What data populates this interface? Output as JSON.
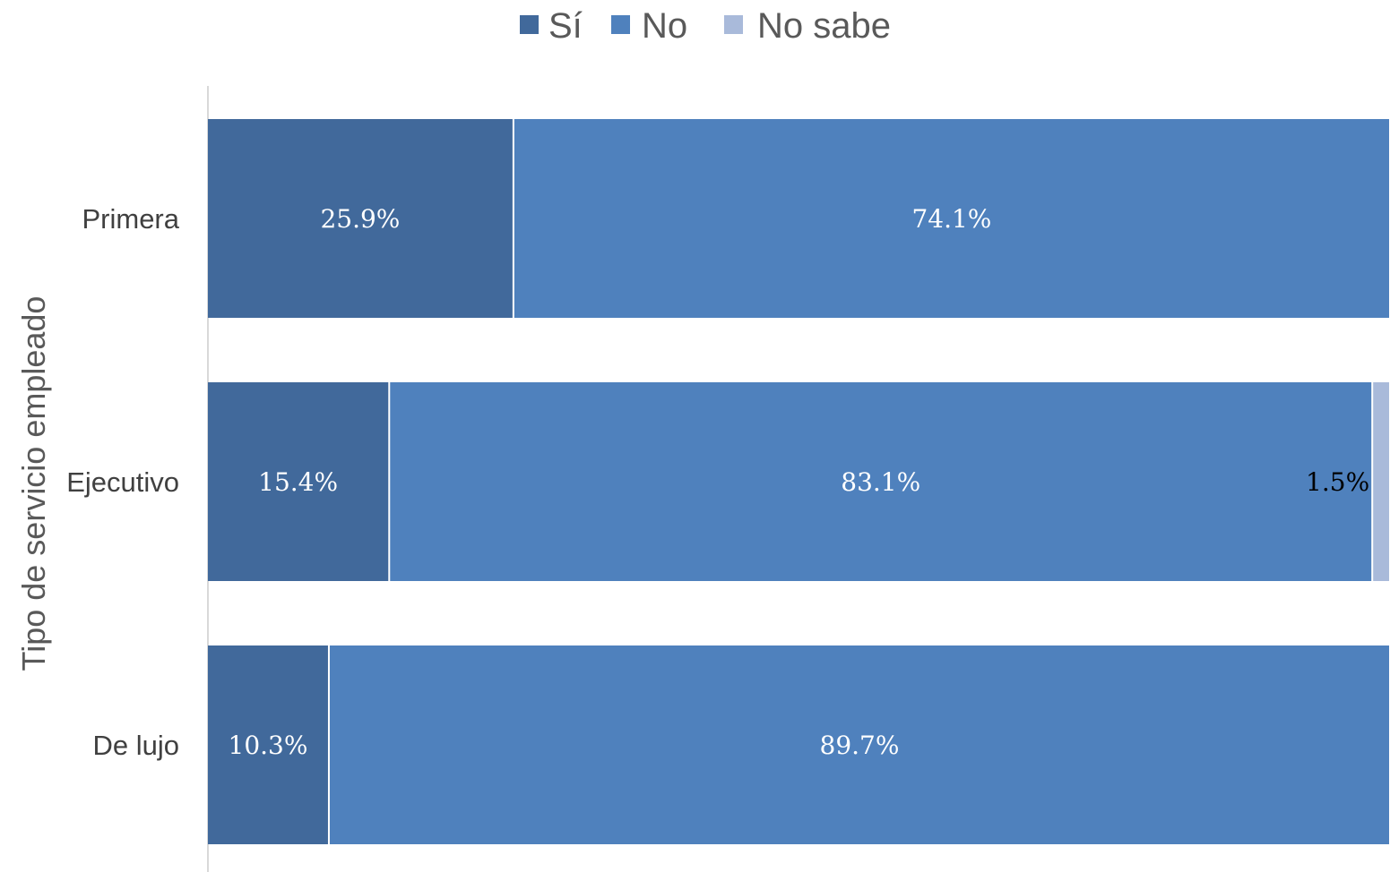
{
  "chart_data": {
    "type": "bar",
    "orientation": "horizontal",
    "stacked": "100%",
    "ylabel": "Tipo de servicio empleado",
    "categories": [
      "Primera",
      "Ejecutivo",
      "De lujo"
    ],
    "series": [
      {
        "name": "Sí",
        "color": "#41699B",
        "values": [
          25.9,
          15.4,
          10.3
        ],
        "labels": [
          "25.9%",
          "15.4%",
          "10.3%"
        ]
      },
      {
        "name": "No",
        "color": "#4F81BD",
        "values": [
          74.1,
          83.1,
          89.7
        ],
        "labels": [
          "74.1%",
          "83.1%",
          "89.7%"
        ]
      },
      {
        "name": "No sabe",
        "color": "#A9BADA",
        "values": [
          0,
          1.5,
          0
        ],
        "labels": [
          "",
          "1.5%",
          ""
        ]
      }
    ],
    "xlim": [
      0,
      100
    ],
    "legend_position": "top",
    "grid": false
  }
}
